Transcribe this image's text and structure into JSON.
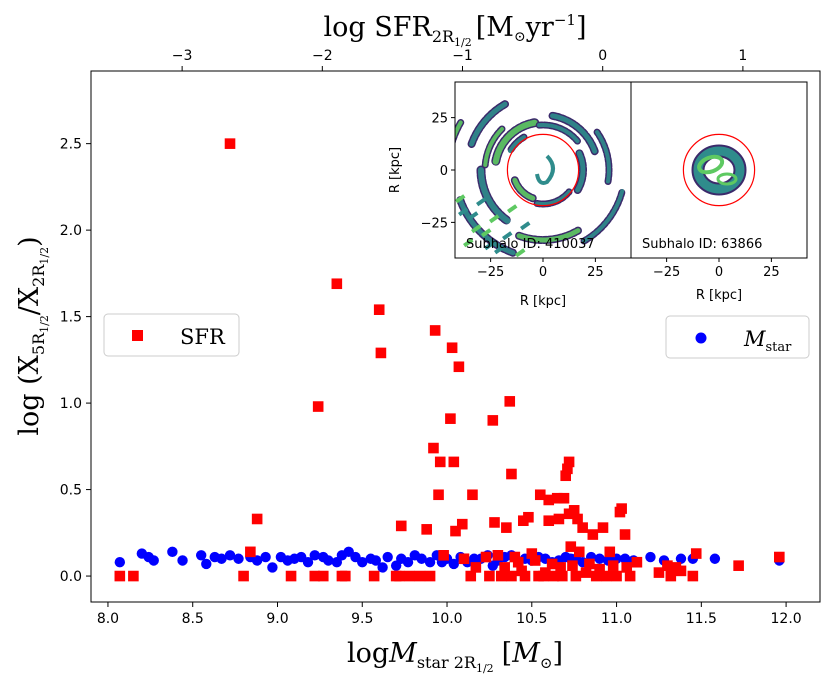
{
  "chart_data": {
    "type": "scatter",
    "x_bottom": {
      "label_prefix": "log",
      "label_var": "M",
      "label_sub": "star 2R",
      "label_subsub": "1/2",
      "label_unit_open": "[",
      "label_unit_var": "M",
      "label_unit_sub": "⊙",
      "label_unit_close": "]",
      "range": [
        7.9,
        12.2
      ],
      "ticks": [
        "8.0",
        "8.5",
        "9.0",
        "9.5",
        "10.0",
        "10.5",
        "11.0",
        "11.5",
        "12.0"
      ]
    },
    "x_top": {
      "label_prefix": "log SFR",
      "label_sub": "2R",
      "label_subsub": "1/2",
      "label_unit_open": "[M",
      "label_unit_sub": "⊙",
      "label_unit_mid": "yr",
      "label_unit_exp": "−1",
      "label_unit_close": "]",
      "range": [
        -3.65,
        1.55
      ],
      "ticks": [
        "−3",
        "−2",
        "−1",
        "0",
        "1"
      ]
    },
    "y": {
      "label_prefix": "log (X",
      "label_sub_num": "5R",
      "label_subsub_num": "1/2",
      "label_mid": "/X",
      "label_sub_den": "2R",
      "label_subsub_den": "1/2",
      "label_close": ")",
      "range": [
        -0.15,
        2.92
      ],
      "ticks": [
        "0.0",
        "0.5",
        "1.0",
        "1.5",
        "2.0",
        "2.5"
      ]
    },
    "series": [
      {
        "name": "SFR",
        "marker": "square",
        "color": "#ff0000",
        "points": [
          [
            8.07,
            0.0
          ],
          [
            8.15,
            0.0
          ],
          [
            8.72,
            2.5
          ],
          [
            8.8,
            0.0
          ],
          [
            8.84,
            0.14
          ],
          [
            8.88,
            0.33
          ],
          [
            9.08,
            0.0
          ],
          [
            9.22,
            0.0
          ],
          [
            9.24,
            0.98
          ],
          [
            9.27,
            0.0
          ],
          [
            9.35,
            1.69
          ],
          [
            9.38,
            0.0
          ],
          [
            9.4,
            0.0
          ],
          [
            9.57,
            0.0
          ],
          [
            9.6,
            1.54
          ],
          [
            9.61,
            1.29
          ],
          [
            9.7,
            0.0
          ],
          [
            9.72,
            0.0
          ],
          [
            9.73,
            0.29
          ],
          [
            9.78,
            0.0
          ],
          [
            9.84,
            0.0
          ],
          [
            9.88,
            0.27
          ],
          [
            9.9,
            0.0
          ],
          [
            9.92,
            0.74
          ],
          [
            9.93,
            1.42
          ],
          [
            9.95,
            0.47
          ],
          [
            9.96,
            0.66
          ],
          [
            9.98,
            0.12
          ],
          [
            10.02,
            0.91
          ],
          [
            10.03,
            1.32
          ],
          [
            10.04,
            0.66
          ],
          [
            10.05,
            0.26
          ],
          [
            10.07,
            1.21
          ],
          [
            10.09,
            0.3
          ],
          [
            10.1,
            0.1
          ],
          [
            10.14,
            0.0
          ],
          [
            10.15,
            0.47
          ],
          [
            10.17,
            0.05
          ],
          [
            10.23,
            0.11
          ],
          [
            10.25,
            0.0
          ],
          [
            10.27,
            0.9
          ],
          [
            10.28,
            0.31
          ],
          [
            10.3,
            0.12
          ],
          [
            10.32,
            0.0
          ],
          [
            10.34,
            0.05
          ],
          [
            10.35,
            0.28
          ],
          [
            10.37,
            1.01
          ],
          [
            10.38,
            0.59
          ],
          [
            10.38,
            0.0
          ],
          [
            10.4,
            0.11
          ],
          [
            10.42,
            0.08
          ],
          [
            10.44,
            0.03
          ],
          [
            10.45,
            0.32
          ],
          [
            10.46,
            0.0
          ],
          [
            10.48,
            0.34
          ],
          [
            10.5,
            0.13
          ],
          [
            10.52,
            0.09
          ],
          [
            10.54,
            0.0
          ],
          [
            10.55,
            0.47
          ],
          [
            10.57,
            0.0
          ],
          [
            10.58,
            0.02
          ],
          [
            10.6,
            0.32
          ],
          [
            10.6,
            0.44
          ],
          [
            10.62,
            0.07
          ],
          [
            10.63,
            0.0
          ],
          [
            10.65,
            0.45
          ],
          [
            10.66,
            0.33
          ],
          [
            10.67,
            0.05
          ],
          [
            10.68,
            0.0
          ],
          [
            10.69,
            0.45
          ],
          [
            10.7,
            0.58
          ],
          [
            10.71,
            0.62
          ],
          [
            10.72,
            0.36
          ],
          [
            10.72,
            0.66
          ],
          [
            10.73,
            0.17
          ],
          [
            10.74,
            0.06
          ],
          [
            10.75,
            0.38
          ],
          [
            10.76,
            0.0
          ],
          [
            10.77,
            0.33
          ],
          [
            10.78,
            0.14
          ],
          [
            10.8,
            0.28
          ],
          [
            10.82,
            0.02
          ],
          [
            10.84,
            0.07
          ],
          [
            10.86,
            0.24
          ],
          [
            10.88,
            0.0
          ],
          [
            10.9,
            0.04
          ],
          [
            10.92,
            0.28
          ],
          [
            10.94,
            0.0
          ],
          [
            10.96,
            0.14
          ],
          [
            10.98,
            0.06
          ],
          [
            11.0,
            0.0
          ],
          [
            11.02,
            0.37
          ],
          [
            11.03,
            0.39
          ],
          [
            11.05,
            0.24
          ],
          [
            11.06,
            0.05
          ],
          [
            11.08,
            0.0
          ],
          [
            11.12,
            0.08
          ],
          [
            11.25,
            0.02
          ],
          [
            11.3,
            0.06
          ],
          [
            11.32,
            0.0
          ],
          [
            11.35,
            0.05
          ],
          [
            11.38,
            0.03
          ],
          [
            11.45,
            0.0
          ],
          [
            11.47,
            0.13
          ],
          [
            11.72,
            0.06
          ],
          [
            11.96,
            0.11
          ]
        ]
      },
      {
        "name": "M_star",
        "marker": "circle",
        "color": "#0000ff",
        "label_var": "M",
        "label_sub": "star",
        "points": [
          [
            8.07,
            0.08
          ],
          [
            8.2,
            0.13
          ],
          [
            8.24,
            0.11
          ],
          [
            8.27,
            0.09
          ],
          [
            8.38,
            0.14
          ],
          [
            8.44,
            0.09
          ],
          [
            8.55,
            0.12
          ],
          [
            8.58,
            0.07
          ],
          [
            8.63,
            0.11
          ],
          [
            8.67,
            0.1
          ],
          [
            8.72,
            0.12
          ],
          [
            8.77,
            0.1
          ],
          [
            8.84,
            0.11
          ],
          [
            8.88,
            0.09
          ],
          [
            8.93,
            0.11
          ],
          [
            8.97,
            0.05
          ],
          [
            9.02,
            0.11
          ],
          [
            9.06,
            0.09
          ],
          [
            9.1,
            0.1
          ],
          [
            9.14,
            0.11
          ],
          [
            9.18,
            0.08
          ],
          [
            9.22,
            0.12
          ],
          [
            9.27,
            0.11
          ],
          [
            9.3,
            0.09
          ],
          [
            9.35,
            0.08
          ],
          [
            9.38,
            0.12
          ],
          [
            9.42,
            0.14
          ],
          [
            9.46,
            0.11
          ],
          [
            9.5,
            0.08
          ],
          [
            9.55,
            0.1
          ],
          [
            9.58,
            0.09
          ],
          [
            9.62,
            0.05
          ],
          [
            9.65,
            0.11
          ],
          [
            9.7,
            0.06
          ],
          [
            9.73,
            0.1
          ],
          [
            9.77,
            0.08
          ],
          [
            9.81,
            0.12
          ],
          [
            9.85,
            0.1
          ],
          [
            9.9,
            0.08
          ],
          [
            9.94,
            0.12
          ],
          [
            9.97,
            0.08
          ],
          [
            10.0,
            0.1
          ],
          [
            10.04,
            0.07
          ],
          [
            10.08,
            0.11
          ],
          [
            10.12,
            0.08
          ],
          [
            10.16,
            0.1
          ],
          [
            10.2,
            0.1
          ],
          [
            10.24,
            0.12
          ],
          [
            10.27,
            0.06
          ],
          [
            10.3,
            0.09
          ],
          [
            10.34,
            0.11
          ],
          [
            10.38,
            0.12
          ],
          [
            10.42,
            0.08
          ],
          [
            10.46,
            0.1
          ],
          [
            10.5,
            0.09
          ],
          [
            10.54,
            0.11
          ],
          [
            10.58,
            0.1
          ],
          [
            10.62,
            0.08
          ],
          [
            10.66,
            0.09
          ],
          [
            10.7,
            0.11
          ],
          [
            10.73,
            0.1
          ],
          [
            10.76,
            0.1
          ],
          [
            10.8,
            0.08
          ],
          [
            10.85,
            0.11
          ],
          [
            10.9,
            0.1
          ],
          [
            10.95,
            0.09
          ],
          [
            11.0,
            0.1
          ],
          [
            11.05,
            0.1
          ],
          [
            11.1,
            0.09
          ],
          [
            11.2,
            0.11
          ],
          [
            11.28,
            0.09
          ],
          [
            11.38,
            0.1
          ],
          [
            11.45,
            0.1
          ],
          [
            11.58,
            0.1
          ],
          [
            11.96,
            0.09
          ]
        ]
      }
    ],
    "legend": [
      {
        "label": "SFR",
        "placement": "center-left"
      },
      {
        "label": "M_star",
        "placement": "center-right"
      }
    ],
    "insets": [
      {
        "caption": "Subhalo ID: 410037",
        "xlabel": "R [kpc]",
        "ylabel": "R [kpc]",
        "range": [
          -42,
          42
        ],
        "xticks": [
          "−25",
          "0",
          "25"
        ],
        "yticks": [
          "25",
          "0",
          "−25"
        ],
        "circle_radius": 17
      },
      {
        "caption": "Subhalo ID: 63866",
        "xlabel": "R [kpc]",
        "range": [
          -42,
          42
        ],
        "xticks": [
          "−25",
          "0",
          "25"
        ],
        "circle_radius": 17
      }
    ],
    "colors": {
      "sfr": "#ff0000",
      "mstar": "#0000ff",
      "map_dark": "#3b2a6b",
      "map_mid": "#2f8c8c",
      "map_light": "#5ec962",
      "circle": "#ff0000"
    }
  }
}
